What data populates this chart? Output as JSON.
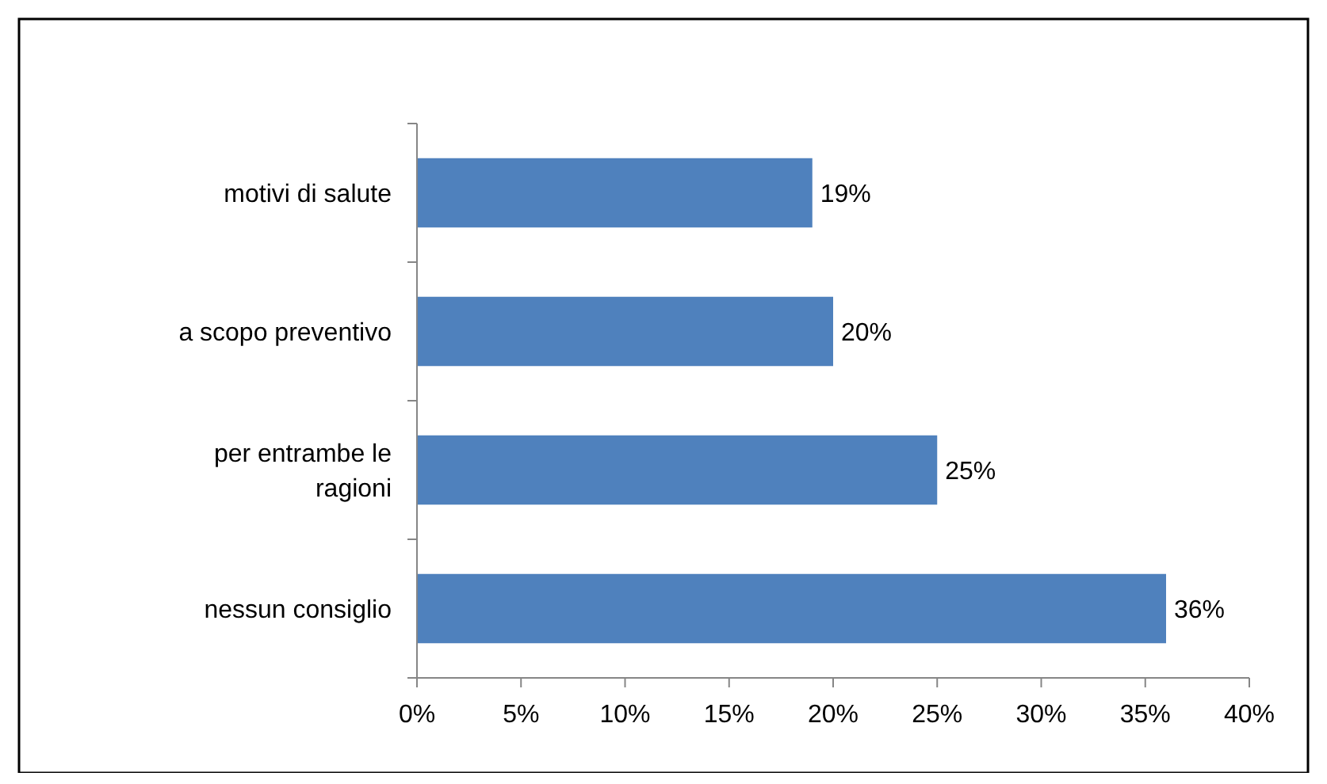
{
  "chart_data": {
    "type": "bar",
    "orientation": "horizontal",
    "categories": [
      "motivi di salute",
      "a scopo preventivo",
      "per entrambe le ragioni",
      "nessun consiglio"
    ],
    "values": [
      19,
      20,
      25,
      36
    ],
    "color": "#4f81bd",
    "value_labels": [
      "19%",
      "20%",
      "25%",
      "36%"
    ],
    "xlim": [
      0,
      40
    ],
    "xticks": [
      {
        "value": 0,
        "label": "0%"
      },
      {
        "value": 5,
        "label": "5%"
      },
      {
        "value": 10,
        "label": "10%"
      },
      {
        "value": 15,
        "label": "15%"
      },
      {
        "value": 20,
        "label": "20%"
      },
      {
        "value": 25,
        "label": "25%"
      },
      {
        "value": 30,
        "label": "30%"
      },
      {
        "value": 35,
        "label": "35%"
      },
      {
        "value": 40,
        "label": "40%"
      }
    ],
    "grid": false
  }
}
